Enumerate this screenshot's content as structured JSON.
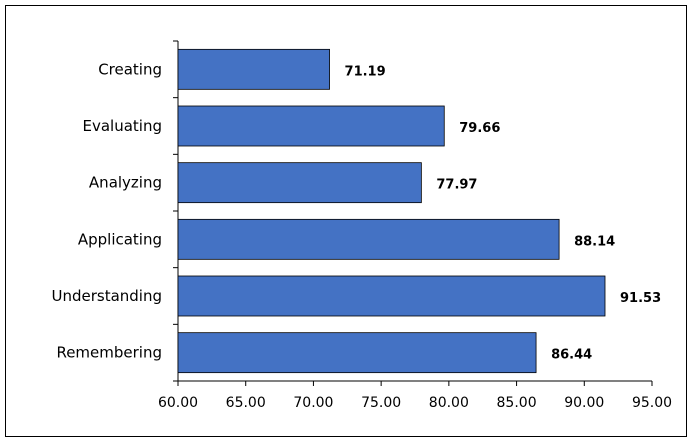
{
  "chart_data": {
    "type": "bar",
    "orientation": "horizontal",
    "categories": [
      "Creating",
      "Evaluating",
      "Analyzing",
      "Applicating",
      "Understanding",
      "Remembering"
    ],
    "values": [
      71.19,
      79.66,
      77.97,
      88.14,
      91.53,
      86.44
    ],
    "value_labels": [
      "71.19",
      "79.66",
      "77.97",
      "88.14",
      "91.53",
      "86.44"
    ],
    "xlim": [
      60,
      95
    ],
    "x_ticks": [
      60,
      65,
      70,
      75,
      80,
      85,
      90,
      95
    ],
    "x_tick_labels": [
      "60.00",
      "65.00",
      "70.00",
      "75.00",
      "80.00",
      "85.00",
      "90.00",
      "95.00"
    ],
    "grid": false,
    "legend": "none",
    "title": "",
    "xlabel": "",
    "ylabel": "",
    "colors": {
      "bar_fill": "#4472C4",
      "bar_stroke": "#000000",
      "axis": "#000000"
    }
  }
}
